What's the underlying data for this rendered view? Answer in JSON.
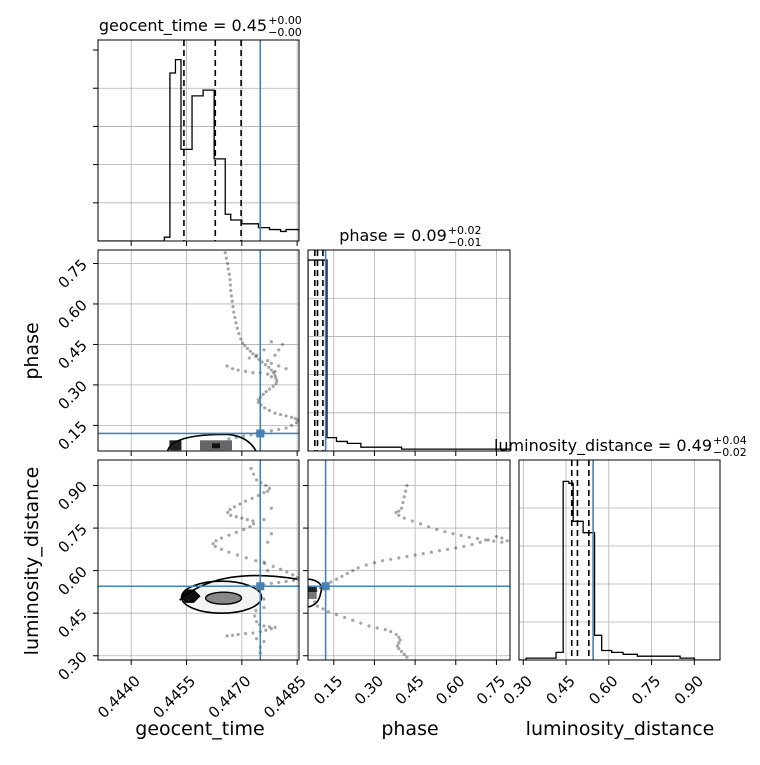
{
  "colors": {
    "truth": "#4682b4",
    "hist": "#000000",
    "grid": "#b0b0b0",
    "density": "#000000"
  },
  "chart_data": {
    "type": "scatter",
    "parameters": [
      "geocent_time",
      "phase",
      "luminosity_distance"
    ],
    "truths": {
      "geocent_time": 0.4475,
      "phase": 0.12,
      "luminosity_distance": 0.545
    },
    "ranges": {
      "geocent_time": [
        0.4431,
        0.44855
      ],
      "phase": [
        0.055,
        0.8
      ],
      "luminosity_distance": [
        0.285,
        0.99
      ]
    },
    "ticks": {
      "geocent_time": {
        "values": [
          0.444,
          0.4455,
          0.447,
          0.4485
        ],
        "labels": [
          "0.4440",
          "0.4455",
          "0.4470",
          "0.4485"
        ]
      },
      "phase": {
        "values": [
          0.15,
          0.3,
          0.45,
          0.6,
          0.75
        ],
        "labels": [
          "0.15",
          "0.30",
          "0.45",
          "0.60",
          "0.75"
        ]
      },
      "luminosity_distance": {
        "values": [
          0.3,
          0.45,
          0.6,
          0.75,
          0.9
        ],
        "labels": [
          "0.30",
          "0.45",
          "0.60",
          "0.75",
          "0.90"
        ]
      }
    },
    "axis_labels": {
      "geocent_time": "geocent_time",
      "phase": "phase",
      "luminosity_distance": "luminosity_distance"
    },
    "titles": [
      {
        "param": "geocent_time",
        "prefix": "geocent_time = 0.45",
        "plus": "+0.00",
        "minus": "−0.00"
      },
      {
        "param": "phase",
        "prefix": "phase = 0.09",
        "plus": "+0.02",
        "minus": "−0.01"
      },
      {
        "param": "luminosity_distance",
        "prefix": "luminosity_distance = 0.49",
        "plus": "+0.04",
        "minus": "−0.02"
      }
    ],
    "histograms": {
      "geocent_time": {
        "edges": [
          0.4431,
          0.44355,
          0.444,
          0.44445,
          0.4449,
          0.44505,
          0.4452,
          0.44535,
          0.4455,
          0.44565,
          0.4458,
          0.44595,
          0.4461,
          0.44625,
          0.4464,
          0.44655,
          0.4467,
          0.44685,
          0.447,
          0.44715,
          0.4473,
          0.44745,
          0.4476,
          0.44775,
          0.4479,
          0.44805,
          0.4482,
          0.44835,
          0.4485,
          0.44855
        ],
        "counts": [
          0,
          0,
          0,
          0,
          0.02,
          0.88,
          0.95,
          0.48,
          0.48,
          0.76,
          0.76,
          0.79,
          0.79,
          0.43,
          0.43,
          0.14,
          0.11,
          0.11,
          0.09,
          0.09,
          0.09,
          0.07,
          0.07,
          0.06,
          0.06,
          0.05,
          0.06,
          0.06,
          0.06
        ],
        "quantiles": [
          0.44543,
          0.44628,
          0.44698
        ],
        "ymax": 1.0
      },
      "phase": {
        "edges": [
          0.055,
          0.075,
          0.085,
          0.095,
          0.105,
          0.115,
          0.125,
          0.135,
          0.16,
          0.2,
          0.25,
          0.3,
          0.4,
          0.5,
          0.6,
          0.7,
          0.8
        ],
        "counts": [
          1.0,
          1.0,
          1.0,
          1.0,
          1.0,
          1.0,
          0.07,
          0.07,
          0.05,
          0.04,
          0.02,
          0.02,
          0.01,
          0.01,
          0.01,
          0.01
        ],
        "quantiles": [
          0.08,
          0.09,
          0.11
        ],
        "ymax": 1.0
      },
      "luminosity_distance": {
        "edges": [
          0.285,
          0.31,
          0.345,
          0.38,
          0.415,
          0.44,
          0.46,
          0.475,
          0.49,
          0.51,
          0.53,
          0.55,
          0.575,
          0.61,
          0.65,
          0.7,
          0.75,
          0.8,
          0.85,
          0.9,
          0.99
        ],
        "counts": [
          0.0,
          0.01,
          0.01,
          0.01,
          0.04,
          0.94,
          0.93,
          0.73,
          0.73,
          0.67,
          0.67,
          0.13,
          0.05,
          0.04,
          0.03,
          0.02,
          0.02,
          0.02,
          0.01,
          0.0
        ],
        "quantiles": [
          0.47,
          0.49,
          0.53
        ],
        "ymax": 1.0
      }
    },
    "scatter_phase_vs_geocent_time": [
      [
        0.44655,
        0.79
      ],
      [
        0.44658,
        0.77
      ],
      [
        0.44661,
        0.75
      ],
      [
        0.44663,
        0.73
      ],
      [
        0.44666,
        0.71
      ],
      [
        0.44668,
        0.69
      ],
      [
        0.44669,
        0.67
      ],
      [
        0.4467,
        0.65
      ],
      [
        0.44672,
        0.63
      ],
      [
        0.44674,
        0.61
      ],
      [
        0.44676,
        0.59
      ],
      [
        0.44678,
        0.57
      ],
      [
        0.44681,
        0.55
      ],
      [
        0.44684,
        0.53
      ],
      [
        0.44688,
        0.51
      ],
      [
        0.44692,
        0.49
      ],
      [
        0.44697,
        0.47
      ],
      [
        0.44702,
        0.455
      ],
      [
        0.44708,
        0.445
      ],
      [
        0.44715,
        0.435
      ],
      [
        0.44723,
        0.425
      ],
      [
        0.4473,
        0.415
      ],
      [
        0.44738,
        0.405
      ],
      [
        0.44746,
        0.395
      ],
      [
        0.44755,
        0.385
      ],
      [
        0.44764,
        0.375
      ],
      [
        0.44773,
        0.365
      ],
      [
        0.4478,
        0.355
      ],
      [
        0.44786,
        0.345
      ],
      [
        0.4479,
        0.335
      ],
      [
        0.44792,
        0.325
      ],
      [
        0.44795,
        0.315
      ],
      [
        0.44793,
        0.305
      ],
      [
        0.44785,
        0.295
      ],
      [
        0.44775,
        0.285
      ],
      [
        0.44766,
        0.275
      ],
      [
        0.44758,
        0.265
      ],
      [
        0.4475,
        0.255
      ],
      [
        0.44745,
        0.245
      ],
      [
        0.44745,
        0.235
      ],
      [
        0.44752,
        0.225
      ],
      [
        0.44762,
        0.215
      ],
      [
        0.44775,
        0.205
      ],
      [
        0.4479,
        0.195
      ],
      [
        0.44805,
        0.19
      ],
      [
        0.4482,
        0.185
      ],
      [
        0.44835,
        0.18
      ],
      [
        0.44845,
        0.175
      ],
      [
        0.44852,
        0.17
      ],
      [
        0.44848,
        0.16
      ],
      [
        0.44835,
        0.15
      ],
      [
        0.4482,
        0.14
      ],
      [
        0.448,
        0.135
      ],
      [
        0.4478,
        0.13
      ],
      [
        0.4476,
        0.125
      ],
      [
        0.4474,
        0.12
      ],
      [
        0.44725,
        0.115
      ],
      [
        0.44705,
        0.11
      ],
      [
        0.44685,
        0.105
      ],
      [
        0.44665,
        0.1
      ],
      [
        0.4466,
        0.37
      ],
      [
        0.44675,
        0.36
      ],
      [
        0.4469,
        0.355
      ],
      [
        0.4471,
        0.35
      ],
      [
        0.4473,
        0.345
      ],
      [
        0.4475,
        0.345
      ],
      [
        0.4477,
        0.34
      ],
      [
        0.4478,
        0.33
      ],
      [
        0.4479,
        0.35
      ],
      [
        0.4477,
        0.39
      ],
      [
        0.4479,
        0.41
      ],
      [
        0.448,
        0.43
      ],
      [
        0.4481,
        0.45
      ],
      [
        0.4478,
        0.46
      ],
      [
        0.4476,
        0.43
      ],
      [
        0.4474,
        0.41
      ],
      [
        0.4472,
        0.4
      ],
      [
        0.4478,
        0.38
      ],
      [
        0.448,
        0.37
      ],
      [
        0.4482,
        0.36
      ]
    ],
    "scatter_luminosity_distance_vs_geocent_time": [
      [
        0.44725,
        0.96
      ],
      [
        0.44732,
        0.94
      ],
      [
        0.4474,
        0.92
      ],
      [
        0.44752,
        0.91
      ],
      [
        0.44765,
        0.9
      ],
      [
        0.44775,
        0.89
      ],
      [
        0.4477,
        0.88
      ],
      [
        0.4476,
        0.875
      ],
      [
        0.44745,
        0.865
      ],
      [
        0.44728,
        0.855
      ],
      [
        0.4471,
        0.845
      ],
      [
        0.44695,
        0.835
      ],
      [
        0.4468,
        0.825
      ],
      [
        0.44668,
        0.815
      ],
      [
        0.44662,
        0.805
      ],
      [
        0.4467,
        0.795
      ],
      [
        0.44685,
        0.79
      ],
      [
        0.447,
        0.785
      ],
      [
        0.44715,
        0.78
      ],
      [
        0.4473,
        0.775
      ],
      [
        0.44732,
        0.765
      ],
      [
        0.44722,
        0.755
      ],
      [
        0.44705,
        0.745
      ],
      [
        0.44685,
        0.735
      ],
      [
        0.44665,
        0.725
      ],
      [
        0.44645,
        0.715
      ],
      [
        0.4463,
        0.705
      ],
      [
        0.44622,
        0.695
      ],
      [
        0.44628,
        0.685
      ],
      [
        0.44645,
        0.675
      ],
      [
        0.44665,
        0.665
      ],
      [
        0.44688,
        0.655
      ],
      [
        0.44712,
        0.645
      ],
      [
        0.44738,
        0.635
      ],
      [
        0.44762,
        0.625
      ],
      [
        0.44785,
        0.615
      ],
      [
        0.44805,
        0.605
      ],
      [
        0.44822,
        0.595
      ],
      [
        0.44838,
        0.585
      ],
      [
        0.4485,
        0.575
      ],
      [
        0.44855,
        0.568
      ],
      [
        0.4484,
        0.565
      ],
      [
        0.4482,
        0.562
      ],
      [
        0.448,
        0.558
      ],
      [
        0.4478,
        0.555
      ],
      [
        0.4476,
        0.55
      ],
      [
        0.44745,
        0.545
      ],
      [
        0.4474,
        0.52
      ],
      [
        0.44742,
        0.49
      ],
      [
        0.44738,
        0.46
      ],
      [
        0.44735,
        0.44
      ],
      [
        0.4474,
        0.42
      ],
      [
        0.44748,
        0.41
      ],
      [
        0.4476,
        0.405
      ],
      [
        0.44775,
        0.402
      ],
      [
        0.4479,
        0.4
      ],
      [
        0.4478,
        0.395
      ],
      [
        0.44765,
        0.39
      ],
      [
        0.4475,
        0.385
      ],
      [
        0.4473,
        0.38
      ],
      [
        0.4471,
        0.378
      ],
      [
        0.4469,
        0.375
      ],
      [
        0.44675,
        0.372
      ],
      [
        0.4466,
        0.37
      ],
      [
        0.4475,
        0.33
      ],
      [
        0.4475,
        0.31
      ],
      [
        0.4476,
        0.35
      ],
      [
        0.4474,
        0.36
      ],
      [
        0.4476,
        0.47
      ],
      [
        0.4476,
        0.5
      ],
      [
        0.4477,
        0.6
      ],
      [
        0.4476,
        0.63
      ],
      [
        0.4477,
        0.7
      ],
      [
        0.4478,
        0.73
      ],
      [
        0.4476,
        0.78
      ],
      [
        0.4478,
        0.82
      ]
    ],
    "scatter_luminosity_distance_vs_phase": [
      [
        0.42,
        0.9
      ],
      [
        0.415,
        0.88
      ],
      [
        0.41,
        0.86
      ],
      [
        0.405,
        0.84
      ],
      [
        0.4,
        0.82
      ],
      [
        0.39,
        0.81
      ],
      [
        0.38,
        0.805
      ],
      [
        0.39,
        0.795
      ],
      [
        0.41,
        0.785
      ],
      [
        0.44,
        0.775
      ],
      [
        0.47,
        0.765
      ],
      [
        0.5,
        0.755
      ],
      [
        0.53,
        0.745
      ],
      [
        0.56,
        0.737
      ],
      [
        0.59,
        0.73
      ],
      [
        0.62,
        0.724
      ],
      [
        0.65,
        0.718
      ],
      [
        0.68,
        0.713
      ],
      [
        0.71,
        0.708
      ],
      [
        0.74,
        0.704
      ],
      [
        0.77,
        0.7
      ],
      [
        0.79,
        0.705
      ],
      [
        0.77,
        0.715
      ],
      [
        0.75,
        0.72
      ],
      [
        0.72,
        0.708
      ],
      [
        0.69,
        0.7
      ],
      [
        0.66,
        0.692
      ],
      [
        0.63,
        0.685
      ],
      [
        0.6,
        0.68
      ],
      [
        0.57,
        0.675
      ],
      [
        0.54,
        0.67
      ],
      [
        0.51,
        0.665
      ],
      [
        0.48,
        0.66
      ],
      [
        0.45,
        0.655
      ],
      [
        0.42,
        0.65
      ],
      [
        0.39,
        0.645
      ],
      [
        0.36,
        0.64
      ],
      [
        0.33,
        0.635
      ],
      [
        0.3,
        0.628
      ],
      [
        0.27,
        0.62
      ],
      [
        0.24,
        0.61
      ],
      [
        0.22,
        0.6
      ],
      [
        0.2,
        0.59
      ],
      [
        0.18,
        0.58
      ],
      [
        0.16,
        0.57
      ],
      [
        0.14,
        0.56
      ],
      [
        0.12,
        0.55
      ],
      [
        0.1,
        0.54
      ],
      [
        0.085,
        0.53
      ],
      [
        0.075,
        0.52
      ],
      [
        0.07,
        0.505
      ],
      [
        0.08,
        0.49
      ],
      [
        0.09,
        0.475
      ],
      [
        0.11,
        0.465
      ],
      [
        0.13,
        0.455
      ],
      [
        0.16,
        0.445
      ],
      [
        0.19,
        0.435
      ],
      [
        0.22,
        0.425
      ],
      [
        0.25,
        0.415
      ],
      [
        0.28,
        0.405
      ],
      [
        0.31,
        0.398
      ],
      [
        0.34,
        0.392
      ],
      [
        0.36,
        0.385
      ],
      [
        0.38,
        0.375
      ],
      [
        0.39,
        0.365
      ],
      [
        0.395,
        0.355
      ],
      [
        0.39,
        0.345
      ],
      [
        0.385,
        0.335
      ],
      [
        0.39,
        0.325
      ],
      [
        0.4,
        0.315
      ],
      [
        0.41,
        0.305
      ],
      [
        0.42,
        0.295
      ]
    ]
  }
}
